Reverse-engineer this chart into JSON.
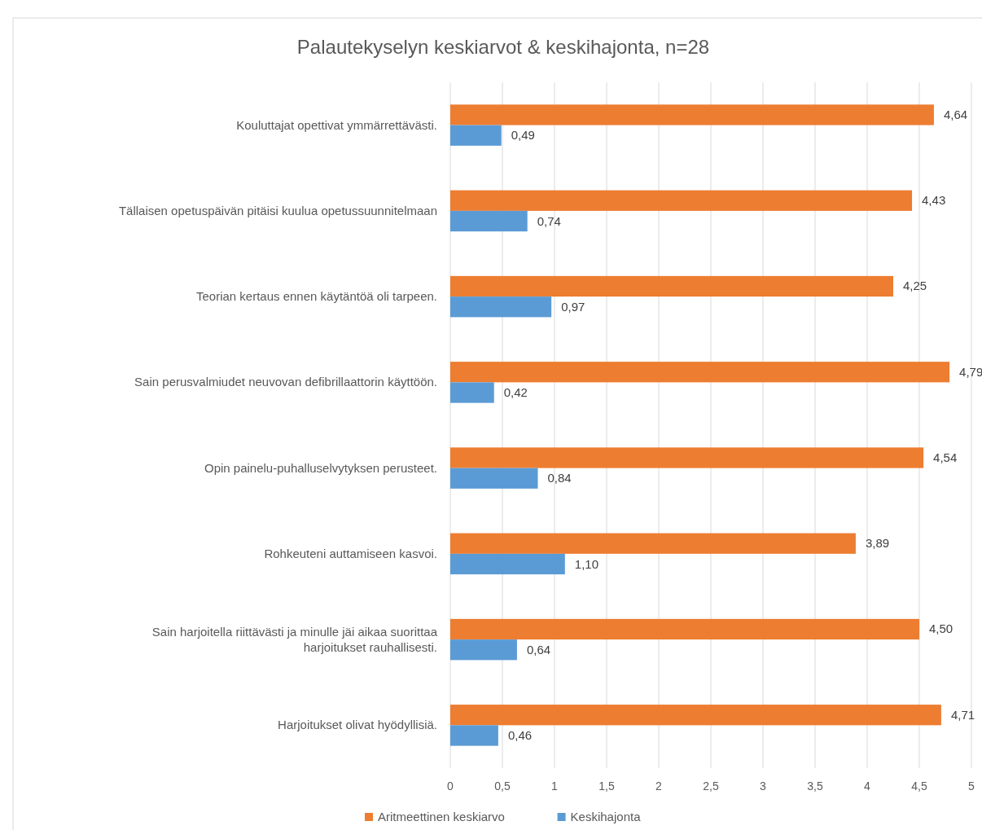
{
  "chart_data": {
    "type": "bar",
    "orientation": "horizontal",
    "title": "Palautekyselyn keskiarvot & keskihajonta, n=28",
    "categories": [
      "Kouluttajat opettivat ymmärrettävästi.",
      "Tällaisen opetuspäivän pitäisi kuulua opetussuunnitelmaan",
      "Teorian kertaus ennen käytäntöä oli tarpeen.",
      "Sain perusvalmiudet neuvovan defibrillaattorin käyttöön.",
      "Opin painelu-puhalluselvytyksen perusteet.",
      "Rohkeuteni auttamiseen kasvoi.",
      "Sain harjoitella riittävästi ja minulle jäi aikaa suorittaa harjoitukset rauhallisesti.",
      "Harjoitukset olivat hyödyllisiä."
    ],
    "series": [
      {
        "name": "Aritmeettinen keskiarvo",
        "color": "#ed7d31",
        "values": [
          4.64,
          4.43,
          4.25,
          4.79,
          4.54,
          3.89,
          4.5,
          4.71
        ],
        "value_labels": [
          "4,64",
          "4,43",
          "4,25",
          "4,79",
          "4,54",
          "3,89",
          "4,50",
          "4,71"
        ]
      },
      {
        "name": "Keskihajonta",
        "color": "#5b9bd5",
        "values": [
          0.49,
          0.74,
          0.97,
          0.42,
          0.84,
          1.1,
          0.64,
          0.46
        ],
        "value_labels": [
          "0,49",
          "0,74",
          "0,97",
          "0,42",
          "0,84",
          "1,10",
          "0,64",
          "0,46"
        ]
      }
    ],
    "xlim": [
      0,
      5
    ],
    "xticks": [
      0,
      {
        "value": 0.5,
        "label": "0,5"
      },
      1,
      {
        "value": 1.5,
        "label": "1,5"
      },
      2,
      {
        "value": 2.5,
        "label": "2,5"
      },
      3,
      {
        "value": 3.5,
        "label": "3,5"
      },
      4,
      {
        "value": 4.5,
        "label": "4,5"
      },
      5
    ],
    "grid": "x",
    "legend": "bottom"
  }
}
